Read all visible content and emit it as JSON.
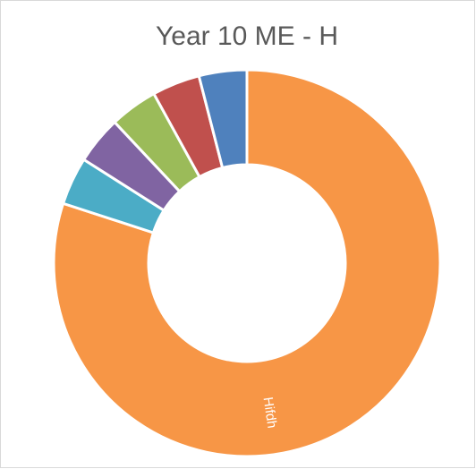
{
  "chart_data": {
    "type": "donut",
    "title": "Year 10 ME - H",
    "categories": [
      "Hifdh",
      null,
      null,
      null,
      null,
      null
    ],
    "values": [
      80,
      4,
      4,
      4,
      4,
      4
    ],
    "colors": [
      "#f79646",
      "#4bacc6",
      "#8064a2",
      "#9bbb59",
      "#c0504d",
      "#4f81bd"
    ]
  }
}
